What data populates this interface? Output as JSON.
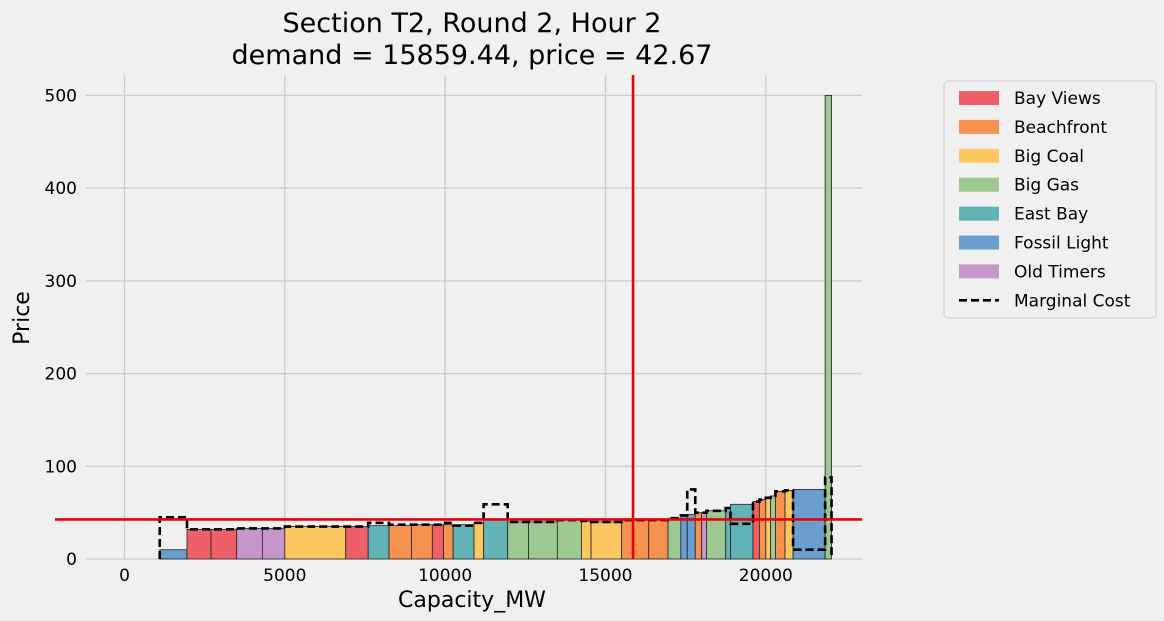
{
  "chart_data": {
    "type": "bar",
    "title_line1": "Section T2, Round 2, Hour 2",
    "title_line2": "demand = 15859.44, price = 42.67",
    "xlabel": "Capacity_MW",
    "ylabel": "Price",
    "xlim": [
      -1200,
      23000
    ],
    "ylim": [
      0,
      522
    ],
    "xticks": [
      0,
      5000,
      10000,
      15000,
      20000
    ],
    "yticks": [
      0,
      100,
      200,
      300,
      400,
      500
    ],
    "grid": true,
    "legend_position": "outside right",
    "demand": 15859.44,
    "price": 42.67,
    "line_color": "#e8000b",
    "legend": [
      {
        "label": "Bay Views",
        "color": "#ee5f67",
        "style": "patch"
      },
      {
        "label": "Beachfront",
        "color": "#f5924f",
        "style": "patch"
      },
      {
        "label": "Big Coal",
        "color": "#fcc761",
        "style": "patch"
      },
      {
        "label": "Big Gas",
        "color": "#9ec891",
        "style": "patch"
      },
      {
        "label": "East Bay",
        "color": "#61b3b5",
        "style": "patch"
      },
      {
        "label": "Fossil Light",
        "color": "#699ecf",
        "style": "patch"
      },
      {
        "label": "Old Timers",
        "color": "#c797c9",
        "style": "patch"
      },
      {
        "label": "Marginal Cost",
        "color": "#000000",
        "style": "dashed"
      }
    ],
    "bars": [
      {
        "x0": 1100,
        "x1": 1950,
        "price": 10,
        "mc": 45,
        "owner": "Fossil Light"
      },
      {
        "x0": 1950,
        "x1": 2700,
        "price": 32,
        "mc": 32,
        "owner": "Bay Views"
      },
      {
        "x0": 2700,
        "x1": 3500,
        "price": 32,
        "mc": 32,
        "owner": "Bay Views"
      },
      {
        "x0": 3500,
        "x1": 4300,
        "price": 33,
        "mc": 33,
        "owner": "Old Timers"
      },
      {
        "x0": 4300,
        "x1": 5000,
        "price": 33,
        "mc": 33,
        "owner": "Old Timers"
      },
      {
        "x0": 5000,
        "x1": 6900,
        "price": 35,
        "mc": 35,
        "owner": "Big Coal"
      },
      {
        "x0": 6900,
        "x1": 7600,
        "price": 35,
        "mc": 35,
        "owner": "Bay Views"
      },
      {
        "x0": 7600,
        "x1": 8250,
        "price": 36,
        "mc": 39,
        "owner": "East Bay"
      },
      {
        "x0": 8250,
        "x1": 8950,
        "price": 36,
        "mc": 37,
        "owner": "Beachfront"
      },
      {
        "x0": 8950,
        "x1": 9600,
        "price": 37,
        "mc": 37,
        "owner": "Beachfront"
      },
      {
        "x0": 9600,
        "x1": 9950,
        "price": 37,
        "mc": 37,
        "owner": "Bay Views"
      },
      {
        "x0": 9950,
        "x1": 10250,
        "price": 37,
        "mc": 39,
        "owner": "Beachfront"
      },
      {
        "x0": 10250,
        "x1": 10900,
        "price": 37,
        "mc": 36,
        "owner": "East Bay"
      },
      {
        "x0": 10900,
        "x1": 11200,
        "price": 39,
        "mc": 39,
        "owner": "Big Coal"
      },
      {
        "x0": 11200,
        "x1": 11950,
        "price": 42,
        "mc": 59,
        "owner": "East Bay"
      },
      {
        "x0": 11950,
        "x1": 12600,
        "price": 40,
        "mc": 40,
        "owner": "Big Gas"
      },
      {
        "x0": 12600,
        "x1": 13500,
        "price": 40,
        "mc": 40,
        "owner": "Big Gas"
      },
      {
        "x0": 13500,
        "x1": 14250,
        "price": 42,
        "mc": 42,
        "owner": "Big Gas"
      },
      {
        "x0": 14250,
        "x1": 14550,
        "price": 41,
        "mc": 41,
        "owner": "Big Coal"
      },
      {
        "x0": 14550,
        "x1": 15500,
        "price": 40,
        "mc": 40,
        "owner": "Big Coal"
      },
      {
        "x0": 15500,
        "x1": 16350,
        "price": 42,
        "mc": 42,
        "owner": "Beachfront"
      },
      {
        "x0": 16350,
        "x1": 16950,
        "price": 42,
        "mc": 42,
        "owner": "Beachfront"
      },
      {
        "x0": 16950,
        "x1": 17350,
        "price": 44,
        "mc": 44,
        "owner": "Big Gas"
      },
      {
        "x0": 17350,
        "x1": 17550,
        "price": 47,
        "mc": 47,
        "owner": "Fossil Light"
      },
      {
        "x0": 17550,
        "x1": 17800,
        "price": 48,
        "mc": 75,
        "owner": "Fossil Light"
      },
      {
        "x0": 17800,
        "x1": 18000,
        "price": 50,
        "mc": 50,
        "owner": "Beachfront"
      },
      {
        "x0": 18000,
        "x1": 18150,
        "price": 50,
        "mc": 50,
        "owner": "Old Timers"
      },
      {
        "x0": 18150,
        "x1": 18750,
        "price": 52,
        "mc": 52,
        "owner": "Big Gas"
      },
      {
        "x0": 18750,
        "x1": 18900,
        "price": 55,
        "mc": 55,
        "owner": "East Bay"
      },
      {
        "x0": 18900,
        "x1": 19600,
        "price": 59,
        "mc": 38,
        "owner": "East Bay"
      },
      {
        "x0": 19600,
        "x1": 19800,
        "price": 62,
        "mc": 62,
        "owner": "Bay Views"
      },
      {
        "x0": 19800,
        "x1": 20000,
        "price": 64,
        "mc": 64,
        "owner": "Beachfront"
      },
      {
        "x0": 20000,
        "x1": 20150,
        "price": 66,
        "mc": 66,
        "owner": "Big Coal"
      },
      {
        "x0": 20150,
        "x1": 20300,
        "price": 68,
        "mc": 68,
        "owner": "Big Gas"
      },
      {
        "x0": 20300,
        "x1": 20600,
        "price": 73,
        "mc": 73,
        "owner": "Beachfront"
      },
      {
        "x0": 20600,
        "x1": 20850,
        "price": 74,
        "mc": 74,
        "owner": "Big Coal"
      },
      {
        "x0": 20850,
        "x1": 21850,
        "price": 75,
        "mc": 10,
        "owner": "Fossil Light"
      },
      {
        "x0": 21850,
        "x1": 22050,
        "price": 500,
        "mc": 88,
        "owner": "Big Gas"
      }
    ]
  }
}
